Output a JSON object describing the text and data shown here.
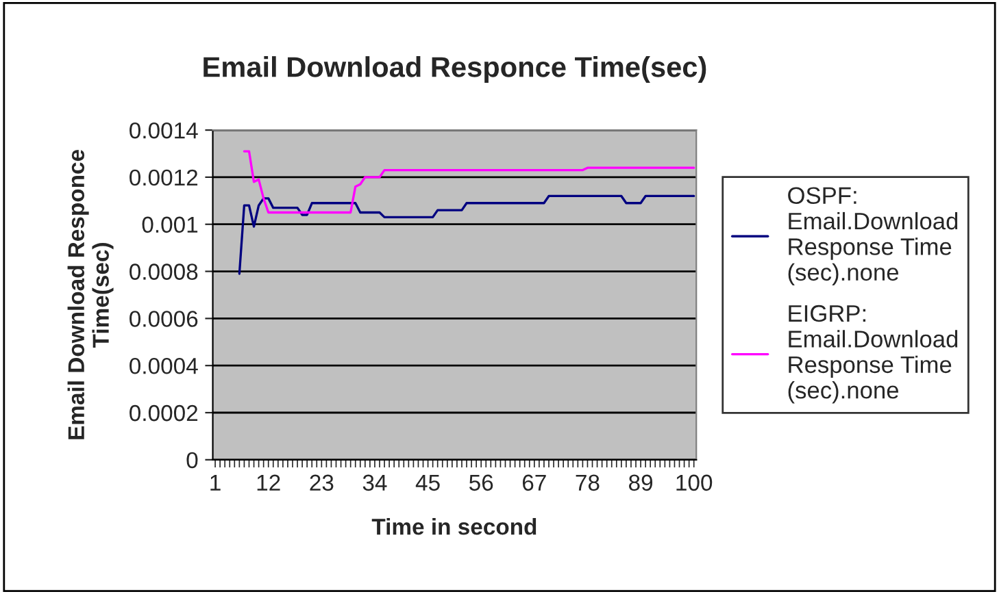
{
  "chart_data": {
    "type": "line",
    "title": "Email Download Responce Time(sec)",
    "xlabel": "Time in second",
    "ylabel": "Email Download Responce\nTime(sec)",
    "categories": [
      "1",
      null,
      null,
      null,
      null,
      null,
      null,
      null,
      null,
      null,
      null,
      "12",
      null,
      null,
      null,
      null,
      null,
      null,
      null,
      null,
      null,
      null,
      "23",
      null,
      null,
      null,
      null,
      null,
      null,
      null,
      null,
      null,
      null,
      "34",
      null,
      null,
      null,
      null,
      null,
      null,
      null,
      null,
      null,
      null,
      "45",
      null,
      null,
      null,
      null,
      null,
      null,
      null,
      null,
      null,
      null,
      "56",
      null,
      null,
      null,
      null,
      null,
      null,
      null,
      null,
      null,
      null,
      "67",
      null,
      null,
      null,
      null,
      null,
      null,
      null,
      null,
      null,
      null,
      "78",
      null,
      null,
      null,
      null,
      null,
      null,
      null,
      null,
      null,
      null,
      "89",
      null,
      null,
      null,
      null,
      null,
      null,
      null,
      null,
      null,
      null,
      "100"
    ],
    "series": [
      {
        "name": "OSPF:\nEmail.Download\nResponse Time\n(sec).none",
        "color": "#000080",
        "values": [
          null,
          null,
          null,
          null,
          null,
          0.00079,
          0.00108,
          0.00108,
          0.00099,
          0.00108,
          0.00111,
          0.00111,
          0.00107,
          0.00107,
          0.00107,
          0.00107,
          0.00107,
          0.00107,
          0.00104,
          0.00104,
          0.00109,
          0.00109,
          0.00109,
          0.00109,
          0.00109,
          0.00109,
          0.00109,
          0.00109,
          0.00109,
          0.00109,
          0.00105,
          0.00105,
          0.00105,
          0.00105,
          0.00105,
          0.00103,
          0.00103,
          0.00103,
          0.00103,
          0.00103,
          0.00103,
          0.00103,
          0.00103,
          0.00103,
          0.00103,
          0.00103,
          0.00106,
          0.00106,
          0.00106,
          0.00106,
          0.00106,
          0.00106,
          0.00109,
          0.00109,
          0.00109,
          0.00109,
          0.00109,
          0.00109,
          0.00109,
          0.00109,
          0.00109,
          0.00109,
          0.00109,
          0.00109,
          0.00109,
          0.00109,
          0.00109,
          0.00109,
          0.00109,
          0.00112,
          0.00112,
          0.00112,
          0.00112,
          0.00112,
          0.00112,
          0.00112,
          0.00112,
          0.00112,
          0.00112,
          0.00112,
          0.00112,
          0.00112,
          0.00112,
          0.00112,
          0.00112,
          0.00109,
          0.00109,
          0.00109,
          0.00109,
          0.00112,
          0.00112,
          0.00112,
          0.00112,
          0.00112,
          0.00112,
          0.00112,
          0.00112,
          0.00112,
          0.00112,
          0.00112
        ]
      },
      {
        "name": "EIGRP:\nEmail.Download\nResponse Time\n(sec).none",
        "color": "#ff00ff",
        "values": [
          null,
          null,
          null,
          null,
          null,
          null,
          0.00131,
          0.00131,
          0.00118,
          0.00119,
          0.00111,
          0.00105,
          0.00105,
          0.00105,
          0.00105,
          0.00105,
          0.00105,
          0.00105,
          0.00105,
          0.00105,
          0.00105,
          0.00105,
          0.00105,
          0.00105,
          0.00105,
          0.00105,
          0.00105,
          0.00105,
          0.00105,
          0.00116,
          0.00117,
          0.0012,
          0.0012,
          0.0012,
          0.0012,
          0.00123,
          0.00123,
          0.00123,
          0.00123,
          0.00123,
          0.00123,
          0.00123,
          0.00123,
          0.00123,
          0.00123,
          0.00123,
          0.00123,
          0.00123,
          0.00123,
          0.00123,
          0.00123,
          0.00123,
          0.00123,
          0.00123,
          0.00123,
          0.00123,
          0.00123,
          0.00123,
          0.00123,
          0.00123,
          0.00123,
          0.00123,
          0.00123,
          0.00123,
          0.00123,
          0.00123,
          0.00123,
          0.00123,
          0.00123,
          0.00123,
          0.00123,
          0.00123,
          0.00123,
          0.00123,
          0.00123,
          0.00123,
          0.00123,
          0.00124,
          0.00124,
          0.00124,
          0.00124,
          0.00124,
          0.00124,
          0.00124,
          0.00124,
          0.00124,
          0.00124,
          0.00124,
          0.00124,
          0.00124,
          0.00124,
          0.00124,
          0.00124,
          0.00124,
          0.00124,
          0.00124,
          0.00124,
          0.00124,
          0.00124,
          0.00124
        ]
      }
    ],
    "ylim": [
      0,
      0.0014
    ],
    "yticks": [
      0,
      0.0002,
      0.0004,
      0.0006,
      0.0008,
      0.001,
      0.0012,
      0.0014
    ],
    "grid": "y",
    "legend": "right",
    "marker": "none",
    "line_style": "solid"
  }
}
